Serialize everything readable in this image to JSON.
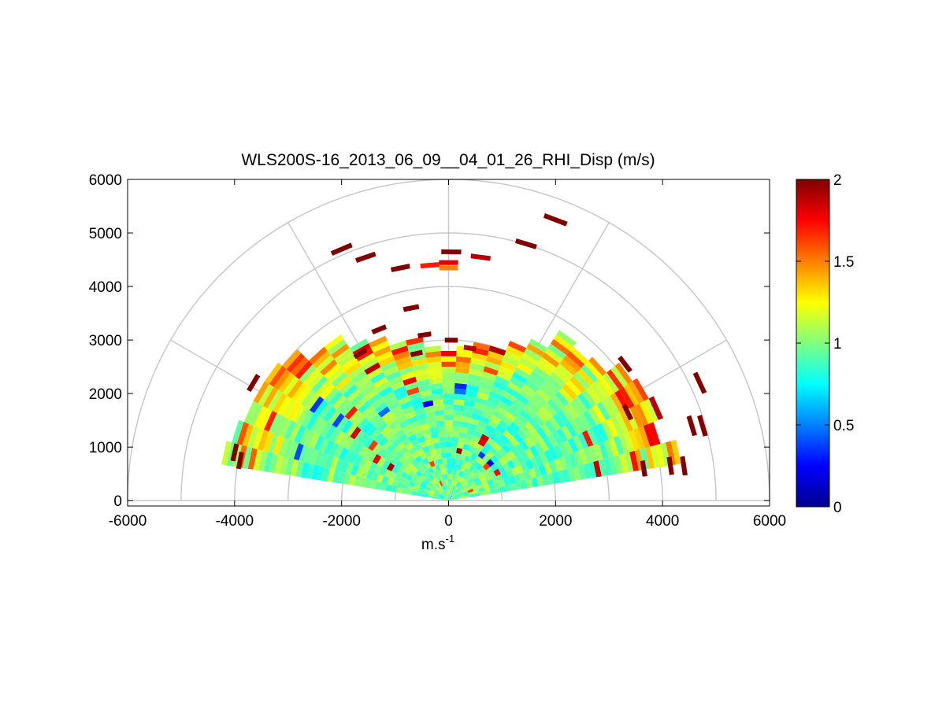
{
  "chart_data": {
    "type": "heatmap",
    "subtype": "polar-rhi-scan",
    "title": "WLS200S-16_2013_06_09__04_01_26_RHI_Disp (m/s)",
    "xlabel_base": "m.s",
    "xlabel_exp": "-1",
    "ylabel": "",
    "xlim": [
      -6000,
      6000
    ],
    "ylim": [
      -100,
      6000
    ],
    "x_ticks": [
      -6000,
      -4000,
      -2000,
      0,
      2000,
      4000,
      6000
    ],
    "x_tick_labels": [
      "-6000",
      "-4000",
      "-2000",
      "0",
      "2000",
      "4000",
      "6000"
    ],
    "y_ticks": [
      0,
      1000,
      2000,
      3000,
      4000,
      5000,
      6000
    ],
    "y_tick_labels": [
      "0",
      "1000",
      "2000",
      "3000",
      "4000",
      "5000",
      "6000"
    ],
    "range_rings": [
      1000,
      2000,
      3000,
      4000,
      5000,
      6000
    ],
    "spoke_angles_deg": [
      0,
      30,
      60,
      90,
      120,
      150,
      180
    ],
    "colorbar": {
      "min": 0,
      "max": 2,
      "ticks": [
        0,
        0.5,
        1,
        1.5,
        2
      ],
      "tick_labels": [
        "0",
        "0.5",
        "1",
        "1.5",
        "2"
      ],
      "colormap": "jet"
    },
    "scan": {
      "elevation_min_deg": 9,
      "elevation_max_deg": 171,
      "elevation_step_deg": 6,
      "range_gate_m": 100,
      "typical_value": 0.95,
      "core_max_range_m": 2600,
      "far_max_range_m": 4300
    },
    "isolated_high_echoes": [
      {
        "x": 2000,
        "y": 5250,
        "value": 2
      },
      {
        "x": 600,
        "y": 4550,
        "value": 1.9
      },
      {
        "x": 0,
        "y": 4450,
        "value": 1.8
      },
      {
        "x": -350,
        "y": 4400,
        "value": 1.7
      },
      {
        "x": -900,
        "y": 4350,
        "value": 2
      },
      {
        "x": 0,
        "y": 4350,
        "value": 1.5
      },
      {
        "x": -2000,
        "y": 4700,
        "value": 2
      },
      {
        "x": -1550,
        "y": 4550,
        "value": 2
      },
      {
        "x": 1450,
        "y": 4800,
        "value": 2
      },
      {
        "x": 50,
        "y": 4650,
        "value": 2
      },
      {
        "x": -700,
        "y": 3600,
        "value": 2
      },
      {
        "x": -450,
        "y": 3100,
        "value": 2
      },
      {
        "x": -1300,
        "y": 3200,
        "value": 2
      },
      {
        "x": 50,
        "y": 3000,
        "value": 2
      },
      {
        "x": -600,
        "y": 2750,
        "value": 2
      },
      {
        "x": -1650,
        "y": 2750,
        "value": 2
      },
      {
        "x": 400,
        "y": 2850,
        "value": 1.9
      },
      {
        "x": -3650,
        "y": 2200,
        "value": 2
      },
      {
        "x": 3300,
        "y": 2550,
        "value": 2
      },
      {
        "x": 4700,
        "y": 2200,
        "value": 2
      },
      {
        "x": 3650,
        "y": 600,
        "value": 2
      },
      {
        "x": 4150,
        "y": 650,
        "value": 2
      },
      {
        "x": 4400,
        "y": 650,
        "value": 2
      },
      {
        "x": -4000,
        "y": 900,
        "value": 2
      },
      {
        "x": -3900,
        "y": 750,
        "value": 2
      },
      {
        "x": 4550,
        "y": 1400,
        "value": 2
      },
      {
        "x": 4750,
        "y": 1400,
        "value": 2
      },
      {
        "x": 3350,
        "y": 1650,
        "value": 2
      }
    ]
  }
}
